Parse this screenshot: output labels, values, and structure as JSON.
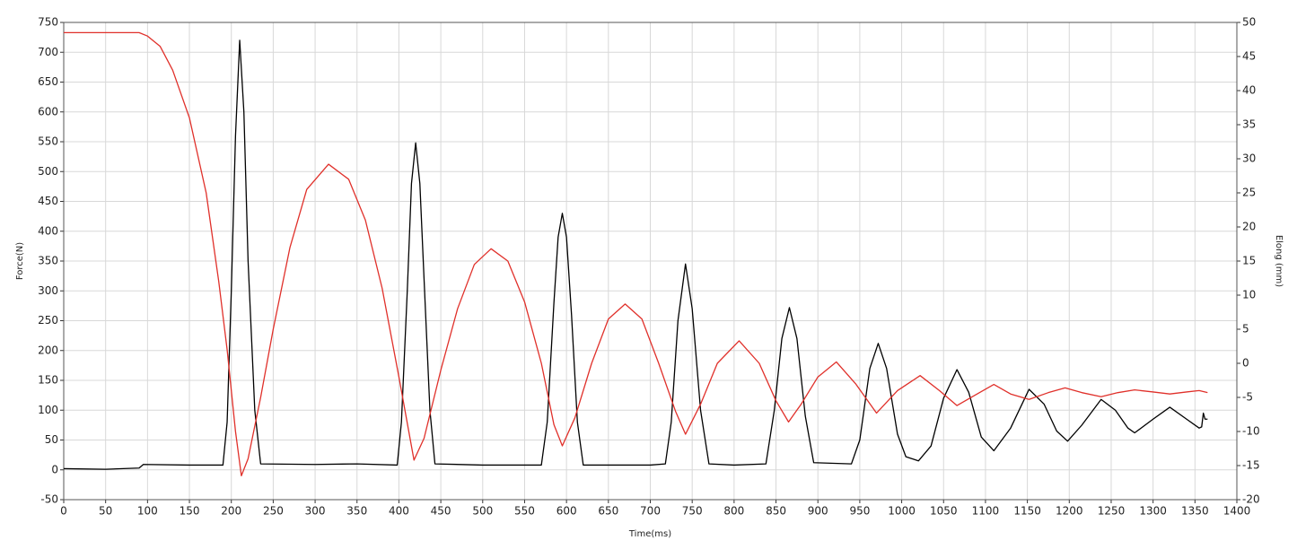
{
  "chart_data": {
    "type": "line",
    "x_label": "Time(ms)",
    "y_label": "Force(N)",
    "y2_label": "Elong (mm)",
    "xlim": [
      0,
      1400
    ],
    "xticks": [
      0,
      50,
      100,
      150,
      200,
      250,
      300,
      350,
      400,
      450,
      500,
      550,
      600,
      650,
      700,
      750,
      800,
      850,
      900,
      950,
      1000,
      1050,
      1100,
      1150,
      1200,
      1250,
      1300,
      1350,
      1400
    ],
    "ylim": [
      -50,
      750
    ],
    "yticks": [
      -50,
      0,
      50,
      100,
      150,
      200,
      250,
      300,
      350,
      400,
      450,
      500,
      550,
      600,
      650,
      700,
      750
    ],
    "y2lim": [
      -20,
      50
    ],
    "y2ticks": [
      -20,
      -15,
      -10,
      -5,
      0,
      5,
      10,
      15,
      20,
      25,
      30,
      35,
      40,
      45,
      50
    ],
    "grid": true,
    "series": [
      {
        "color": "#000000",
        "axis": "y",
        "x": [
          0,
          50,
          90,
          95,
          150,
          190,
          195,
          200,
          205,
          210,
          215,
          220,
          228,
          235,
          300,
          350,
          398,
          403,
          410,
          415,
          420,
          425,
          430,
          437,
          443,
          500,
          570,
          577,
          585,
          590,
          595,
          600,
          606,
          613,
          620,
          700,
          718,
          725,
          733,
          742,
          750,
          760,
          770,
          800,
          838,
          848,
          857,
          866,
          875,
          885,
          895,
          940,
          950,
          962,
          972,
          982,
          995,
          1005,
          1020,
          1035,
          1050,
          1066,
          1080,
          1095,
          1110,
          1130,
          1152,
          1170,
          1185,
          1198,
          1215,
          1238,
          1255,
          1270,
          1278,
          1300,
          1320,
          1340,
          1355,
          1358,
          1360,
          1362,
          1365
        ],
        "values": [
          2,
          1,
          3,
          9,
          8,
          8,
          80,
          300,
          560,
          720,
          600,
          350,
          100,
          10,
          9,
          10,
          8,
          80,
          300,
          480,
          548,
          480,
          320,
          100,
          10,
          8,
          8,
          80,
          280,
          390,
          430,
          390,
          260,
          80,
          8,
          8,
          10,
          80,
          250,
          345,
          270,
          100,
          10,
          8,
          10,
          100,
          220,
          272,
          220,
          90,
          12,
          10,
          50,
          170,
          212,
          170,
          60,
          22,
          15,
          40,
          120,
          168,
          130,
          55,
          32,
          70,
          135,
          110,
          65,
          48,
          75,
          118,
          100,
          70,
          62,
          85,
          105,
          85,
          70,
          72,
          95,
          85,
          85
        ]
      },
      {
        "color": "#e0302a",
        "axis": "y2",
        "x": [
          0,
          90,
          100,
          115,
          130,
          150,
          170,
          185,
          195,
          205,
          212,
          220,
          235,
          250,
          270,
          290,
          316,
          340,
          360,
          380,
          400,
          418,
          430,
          450,
          470,
          490,
          510,
          530,
          550,
          570,
          585,
          595,
          610,
          630,
          650,
          670,
          690,
          710,
          730,
          742,
          760,
          780,
          806,
          830,
          850,
          865,
          880,
          900,
          922,
          945,
          970,
          995,
          1022,
          1045,
          1066,
          1090,
          1110,
          1130,
          1152,
          1175,
          1195,
          1215,
          1238,
          1258,
          1278,
          1300,
          1320,
          1340,
          1355,
          1365
        ],
        "values": [
          48.5,
          48.5,
          48,
          46.5,
          43,
          36,
          25,
          12,
          2,
          -10,
          -16.5,
          -14,
          -5,
          5,
          17,
          25.5,
          29.2,
          27,
          21,
          11,
          -2,
          -14.2,
          -11,
          -1,
          8,
          14.5,
          16.8,
          15,
          9,
          0,
          -9,
          -12.1,
          -8,
          0,
          6.5,
          8.7,
          6.5,
          0,
          -7,
          -10.4,
          -6,
          0,
          3.3,
          0,
          -5.5,
          -8.6,
          -6,
          -2,
          0.2,
          -3,
          -7.3,
          -4,
          -1.8,
          -4,
          -6.2,
          -4.5,
          -3.1,
          -4.5,
          -5.3,
          -4.3,
          -3.6,
          -4.3,
          -4.9,
          -4.3,
          -3.9,
          -4.2,
          -4.5,
          -4.2,
          -4.0,
          -4.3
        ]
      }
    ]
  }
}
